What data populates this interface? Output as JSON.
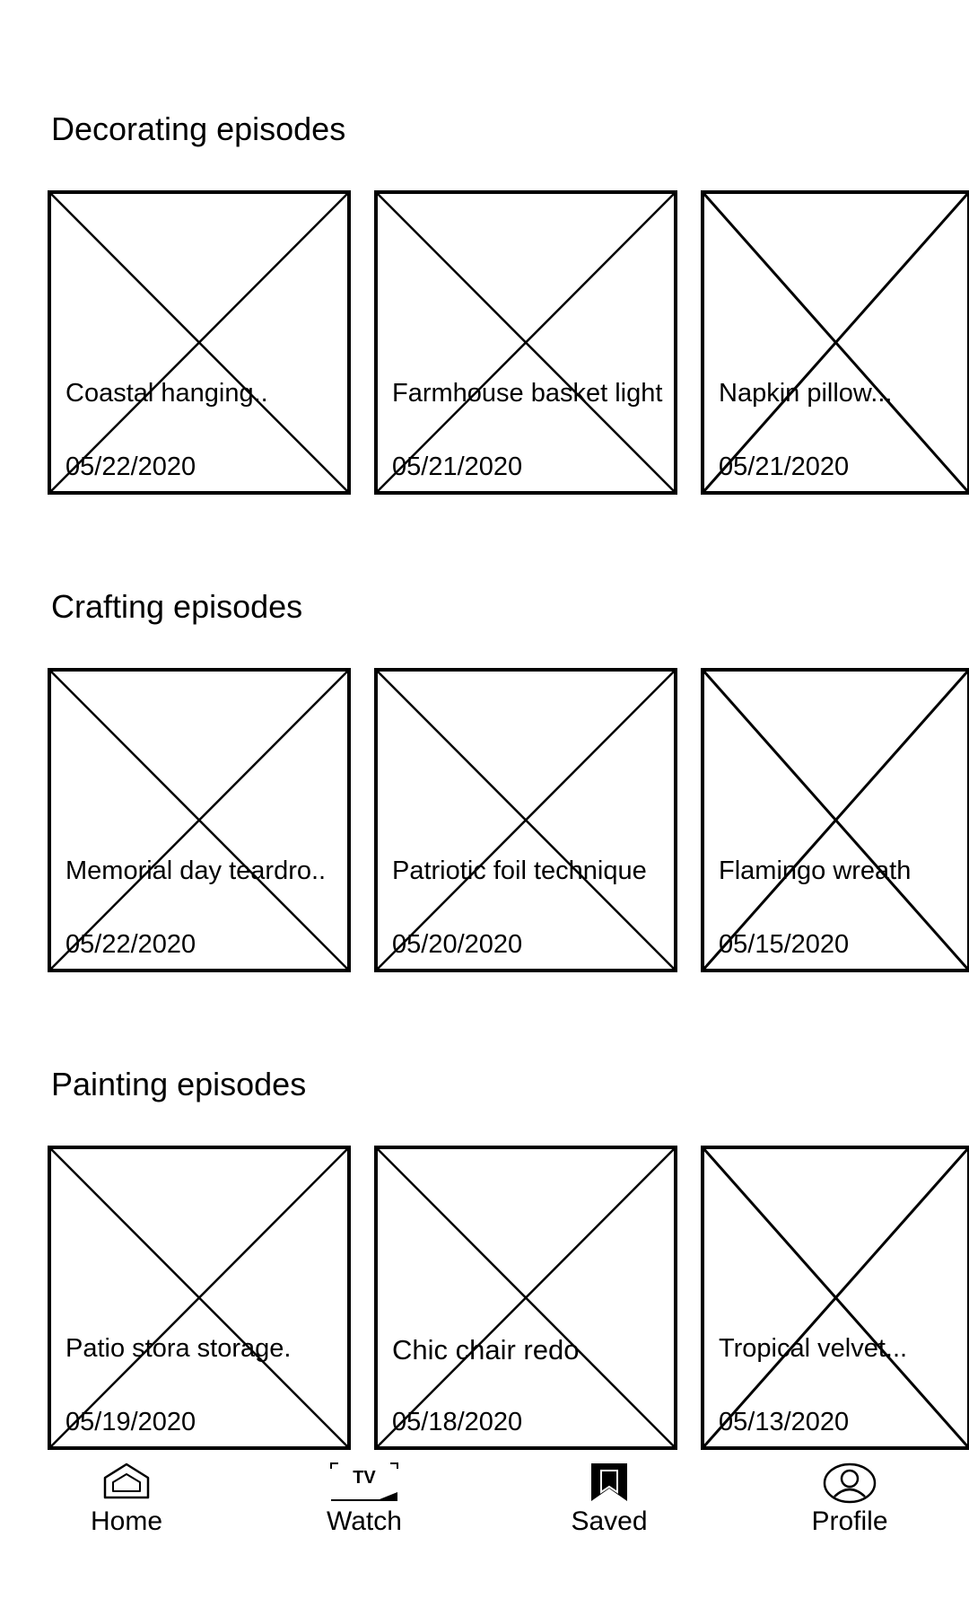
{
  "sections": [
    {
      "title": "Decorating episodes",
      "cards": [
        {
          "title": "Coastal hanging..",
          "date": "05/22/2020"
        },
        {
          "title": "Farmhouse basket light",
          "date": "05/21/2020"
        },
        {
          "title": "Napkin pillow...",
          "date": "05/21/2020"
        }
      ]
    },
    {
      "title": "Crafting episodes",
      "cards": [
        {
          "title": "Memorial day teardro..",
          "date": "05/22/2020"
        },
        {
          "title": "Patriotic foil technique",
          "date": "05/20/2020"
        },
        {
          "title": "Flamingo wreath",
          "date": "05/15/2020"
        }
      ]
    },
    {
      "title": "Painting episodes",
      "cards": [
        {
          "title": "Patio stora storage.",
          "date": "05/19/2020"
        },
        {
          "title": "Chic chair redo",
          "date": "05/18/2020"
        },
        {
          "title": "Tropical velvet...",
          "date": "05/13/2020"
        }
      ]
    }
  ],
  "bottom_nav": {
    "items": [
      {
        "label": "Home",
        "icon": "home-icon"
      },
      {
        "label": "Watch",
        "icon": "tv-icon",
        "icon_text": "TV"
      },
      {
        "label": "Saved",
        "icon": "bookmark-icon"
      },
      {
        "label": "Profile",
        "icon": "profile-icon"
      }
    ]
  },
  "colors": {
    "background": "#ffffff",
    "foreground": "#000000"
  }
}
